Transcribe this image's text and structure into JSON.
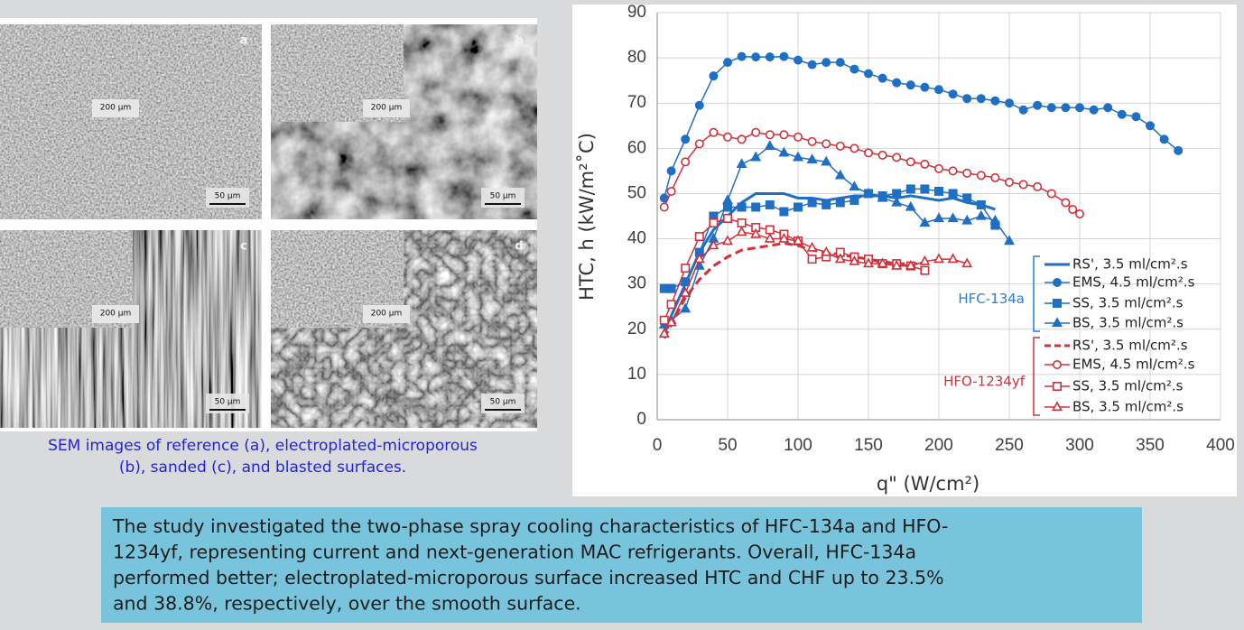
{
  "figure": {
    "panels": [
      {
        "letter": "a",
        "inset_scale": "200 µm",
        "scale": "50 µm"
      },
      {
        "letter": "b",
        "inset_scale": "200 µm",
        "scale": "50 µm"
      },
      {
        "letter": "c",
        "inset_scale": "200 µm",
        "scale": "50 µm"
      },
      {
        "letter": "d",
        "inset_scale": "200 µm",
        "scale": "50 µm"
      }
    ],
    "caption": [
      "SEM images  of reference (a), electroplated-microporous",
      "(b), sanded (c), and blasted surfaces."
    ]
  },
  "chart_data": {
    "type": "line",
    "x_label": "q\" (W/cm²)",
    "y_label": "HTC, h (kW/m²˚C)",
    "xlim": [
      0,
      400
    ],
    "xticks": [
      0,
      50,
      100,
      150,
      200,
      250,
      300,
      350,
      400
    ],
    "ylim": [
      0,
      90
    ],
    "yticks": [
      0,
      10,
      20,
      30,
      40,
      50,
      60,
      70,
      80,
      90
    ],
    "grid": true,
    "legend_groups": [
      {
        "label": "HFC-134a",
        "color": "#2a7fd4"
      },
      {
        "label": "HFO-1234yf",
        "color": "#d0313b"
      }
    ],
    "series": [
      {
        "name": "RS', 3.5 ml/cm².s",
        "color": "#1f6fc5",
        "marker": "none",
        "filled": true,
        "dashed": false,
        "x": [
          5,
          10,
          20,
          30,
          40,
          50,
          60,
          70,
          80,
          90,
          100,
          110,
          120,
          130,
          140,
          150,
          160,
          170,
          180,
          190,
          200,
          210,
          220,
          230,
          240
        ],
        "values": [
          19,
          23,
          30,
          37,
          42,
          45,
          48,
          50,
          50,
          50,
          49,
          49,
          48.5,
          49,
          49.5,
          49.5,
          49.5,
          49,
          49.5,
          49,
          48.5,
          49,
          48,
          47.5,
          46.5
        ]
      },
      {
        "name": "EMS, 4.5 ml/cm².s",
        "color": "#1f6fc5",
        "marker": "circle",
        "filled": true,
        "dashed": false,
        "x": [
          5,
          10,
          20,
          30,
          40,
          50,
          60,
          70,
          80,
          90,
          100,
          110,
          120,
          130,
          140,
          150,
          160,
          170,
          180,
          190,
          200,
          210,
          220,
          230,
          240,
          250,
          260,
          270,
          280,
          290,
          300,
          310,
          320,
          330,
          340,
          350,
          360,
          370
        ],
        "values": [
          49,
          55,
          62,
          69.5,
          76,
          79,
          80.3,
          80.2,
          80.2,
          80.3,
          79.5,
          78.5,
          79,
          79,
          77.5,
          76.5,
          75.5,
          74.5,
          74,
          73.5,
          73,
          72,
          71,
          71,
          70.5,
          70,
          68.5,
          69.5,
          69,
          69,
          69,
          68.5,
          69,
          67.5,
          67,
          65,
          62,
          59.5
        ]
      },
      {
        "name": "SS, 3.5 ml/cm².s",
        "color": "#1f6fc5",
        "marker": "square",
        "filled": true,
        "dashed": false,
        "x": [
          5,
          10,
          20,
          30,
          40,
          50,
          60,
          70,
          80,
          90,
          100,
          110,
          120,
          130,
          140,
          150,
          160,
          170,
          180,
          190,
          200,
          210,
          220,
          230,
          240
        ],
        "values": [
          29,
          29,
          30.5,
          37,
          45,
          47,
          47,
          47,
          47.5,
          46,
          47,
          48,
          47.5,
          48,
          48.5,
          50,
          49.5,
          50,
          51,
          51,
          50.5,
          50,
          49,
          47.5,
          43
        ]
      },
      {
        "name": "BS,  3.5 ml/cm².s",
        "color": "#1f6fc5",
        "marker": "triangle",
        "filled": true,
        "dashed": false,
        "x": [
          5,
          10,
          20,
          30,
          40,
          50,
          60,
          70,
          80,
          90,
          100,
          110,
          120,
          130,
          140,
          150,
          160,
          170,
          180,
          190,
          200,
          210,
          220,
          230,
          240,
          250
        ],
        "values": [
          21,
          22,
          24.5,
          34,
          40,
          48.5,
          56.5,
          58,
          60.5,
          59,
          58,
          57.5,
          57,
          54,
          51.5,
          50,
          49,
          48,
          47,
          43.5,
          44.5,
          44.5,
          44,
          45,
          44,
          39.5
        ]
      },
      {
        "name": "RS', 3.5 ml/cm².s",
        "color": "#d0313b",
        "marker": "none",
        "filled": false,
        "dashed": true,
        "x": [
          5,
          10,
          20,
          30,
          40,
          50,
          60,
          70,
          80,
          90,
          100,
          110,
          120,
          130,
          140,
          150,
          160,
          170,
          180,
          190
        ],
        "values": [
          18,
          21,
          27,
          31,
          34,
          36,
          37.5,
          38,
          38.5,
          39,
          38.5,
          37.5,
          37,
          36.5,
          36,
          35.5,
          35,
          34.5,
          34.5,
          34.5
        ]
      },
      {
        "name": "EMS, 4.5 ml/cm².s",
        "color": "#d0313b",
        "marker": "circle",
        "filled": false,
        "dashed": false,
        "x": [
          5,
          10,
          20,
          30,
          40,
          50,
          60,
          70,
          80,
          90,
          100,
          110,
          120,
          130,
          140,
          150,
          160,
          170,
          180,
          190,
          200,
          210,
          220,
          230,
          240,
          250,
          260,
          270,
          280,
          290,
          295,
          300
        ],
        "values": [
          47,
          50.5,
          57,
          61,
          63.5,
          62.5,
          62,
          63.5,
          63,
          63,
          62.5,
          61.5,
          61,
          60.5,
          60,
          59,
          58.5,
          58,
          57,
          56.5,
          55.5,
          55,
          54.5,
          54,
          53.5,
          52.5,
          52,
          51.5,
          50,
          48,
          46.5,
          45.5
        ]
      },
      {
        "name": "SS, 3.5 ml/cm².s",
        "color": "#d0313b",
        "marker": "square",
        "filled": false,
        "dashed": false,
        "x": [
          5,
          10,
          20,
          30,
          40,
          50,
          60,
          70,
          80,
          90,
          100,
          110,
          120,
          130,
          140,
          150,
          160,
          170,
          180,
          190
        ],
        "values": [
          22,
          25.5,
          33.5,
          40.5,
          43.5,
          44.5,
          43.5,
          42.5,
          42,
          41,
          39.5,
          35.5,
          36,
          37,
          36,
          35.5,
          34.5,
          34.5,
          34,
          33
        ]
      },
      {
        "name": "BS, 3.5 ml/cm².s",
        "color": "#d0313b",
        "marker": "triangle",
        "filled": false,
        "dashed": false,
        "x": [
          5,
          10,
          20,
          30,
          40,
          50,
          60,
          70,
          80,
          90,
          100,
          110,
          120,
          130,
          140,
          150,
          160,
          170,
          180,
          190,
          200,
          210,
          220
        ],
        "values": [
          19,
          21.5,
          28,
          35.5,
          38.5,
          39.5,
          41.5,
          41,
          40,
          40,
          39.5,
          38,
          37,
          35.5,
          35,
          34.5,
          34.5,
          34,
          34,
          35,
          35.5,
          35.5,
          34.5
        ]
      }
    ]
  },
  "summary": {
    "lines": [
      "The study investigated the two-phase spray cooling characteristics of HFC-134a and HFO-",
      "1234yf, representing current and next-generation MAC refrigerants. Overall, HFC-134a",
      "performed better; electroplated-microporous surface increased HTC and CHF up to 23.5%",
      "and 38.8%, respectively, over the smooth surface."
    ]
  }
}
